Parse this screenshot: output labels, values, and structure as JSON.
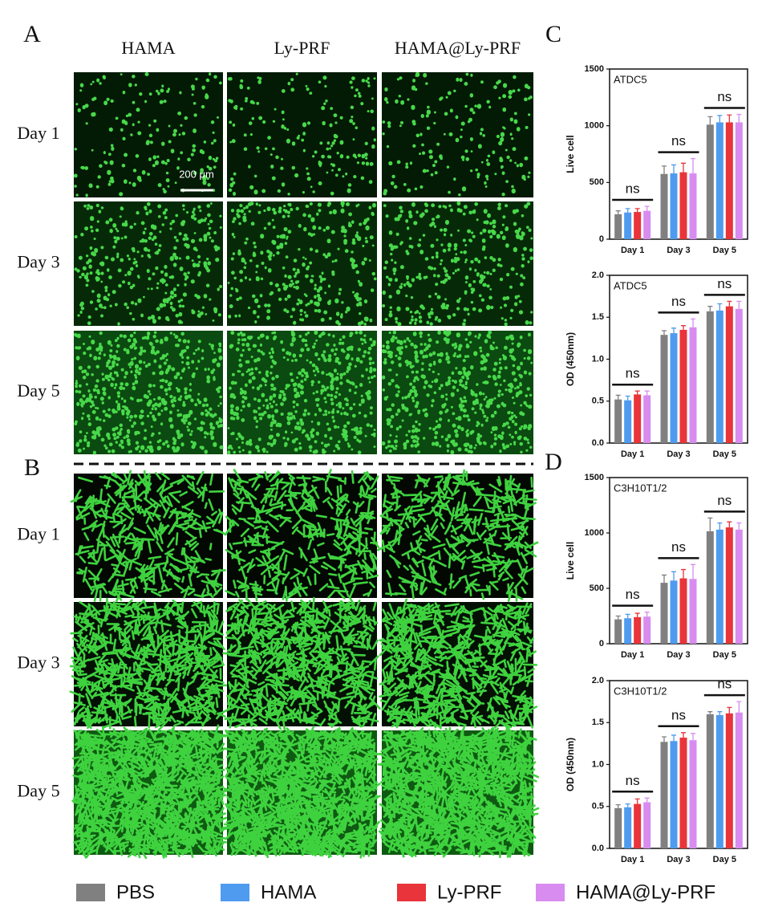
{
  "panels": [
    "A",
    "B",
    "C",
    "D"
  ],
  "columns": [
    "HAMA",
    "Ly-PRF",
    "HAMA@Ly-PRF"
  ],
  "rows": [
    "Day 1",
    "Day 3",
    "Day 5"
  ],
  "scale_bar": "200 μm",
  "chart_data": [
    {
      "type": "bar",
      "title": "ATDC5",
      "ylabel": "Live cell",
      "categories": [
        "Day 1",
        "Day 3",
        "Day 5"
      ],
      "series": [
        {
          "name": "PBS",
          "color": "#808080",
          "values": [
            220,
            575,
            1010
          ],
          "errors": [
            30,
            70,
            70
          ]
        },
        {
          "name": "HAMA",
          "color": "#4f9bef",
          "values": [
            235,
            580,
            1030
          ],
          "errors": [
            35,
            75,
            60
          ]
        },
        {
          "name": "Ly-PRF",
          "color": "#e8343a",
          "values": [
            240,
            590,
            1030
          ],
          "errors": [
            30,
            80,
            65
          ]
        },
        {
          "name": "HAMA@Ly-PRF",
          "color": "#d88cf0",
          "values": [
            250,
            580,
            1030
          ],
          "errors": [
            40,
            130,
            70
          ]
        }
      ],
      "annotations": [
        "ns",
        "ns",
        "ns"
      ],
      "ylim": [
        0,
        1500
      ],
      "yticks": [
        0,
        500,
        1000,
        1500
      ]
    },
    {
      "type": "bar",
      "title": "ATDC5",
      "ylabel": "OD (450nm)",
      "categories": [
        "Day 1",
        "Day 3",
        "Day 5"
      ],
      "series": [
        {
          "color": "#808080",
          "values": [
            0.52,
            1.29,
            1.57
          ],
          "errors": [
            0.05,
            0.05,
            0.06
          ]
        },
        {
          "color": "#4f9bef",
          "values": [
            0.51,
            1.31,
            1.58
          ],
          "errors": [
            0.05,
            0.06,
            0.08
          ]
        },
        {
          "color": "#e8343a",
          "values": [
            0.58,
            1.35,
            1.63
          ],
          "errors": [
            0.04,
            0.05,
            0.06
          ]
        },
        {
          "color": "#d88cf0",
          "values": [
            0.57,
            1.38,
            1.6
          ],
          "errors": [
            0.05,
            0.1,
            0.09
          ]
        }
      ],
      "annotations": [
        "ns",
        "ns",
        "ns"
      ],
      "ylim": [
        0,
        2
      ],
      "yticks": [
        {
          "value": 0,
          "label": "0.0"
        },
        0.5,
        {
          "value": 1,
          "label": "1.0"
        },
        1.5,
        {
          "value": 2,
          "label": "2.0"
        }
      ]
    },
    {
      "type": "bar",
      "title": "C3H10T1/2",
      "ylabel": "Live cell",
      "categories": [
        "Day 1",
        "Day 3",
        "Day 5"
      ],
      "series": [
        {
          "color": "#808080",
          "values": [
            220,
            550,
            1015
          ],
          "errors": [
            30,
            70,
            120
          ]
        },
        {
          "color": "#4f9bef",
          "values": [
            230,
            570,
            1030
          ],
          "errors": [
            35,
            80,
            60
          ]
        },
        {
          "color": "#e8343a",
          "values": [
            240,
            590,
            1050
          ],
          "errors": [
            35,
            80,
            50
          ]
        },
        {
          "color": "#d88cf0",
          "values": [
            245,
            585,
            1030
          ],
          "errors": [
            40,
            130,
            60
          ]
        }
      ],
      "annotations": [
        "ns",
        "ns",
        "ns"
      ],
      "ylim": [
        0,
        1500
      ],
      "yticks": [
        0,
        500,
        1000,
        1500
      ]
    },
    {
      "type": "bar",
      "title": "C3H10T1/2",
      "ylabel": "OD (450nm)",
      "categories": [
        "Day 1",
        "Day 3",
        "Day 5"
      ],
      "series": [
        {
          "color": "#808080",
          "values": [
            0.48,
            1.27,
            1.6
          ],
          "errors": [
            0.04,
            0.06,
            0.03
          ]
        },
        {
          "color": "#4f9bef",
          "values": [
            0.49,
            1.28,
            1.59
          ],
          "errors": [
            0.04,
            0.07,
            0.04
          ]
        },
        {
          "color": "#e8343a",
          "values": [
            0.53,
            1.32,
            1.61
          ],
          "errors": [
            0.06,
            0.06,
            0.07
          ]
        },
        {
          "color": "#d88cf0",
          "values": [
            0.55,
            1.29,
            1.62
          ],
          "errors": [
            0.05,
            0.08,
            0.13
          ]
        }
      ],
      "annotations": [
        "ns",
        "ns",
        "ns"
      ],
      "ylim": [
        0,
        2
      ],
      "yticks": [
        {
          "value": 0,
          "label": "0.0"
        },
        0.5,
        {
          "value": 1,
          "label": "1.0"
        },
        1.5,
        {
          "value": 2,
          "label": "2.0"
        }
      ]
    }
  ]
}
